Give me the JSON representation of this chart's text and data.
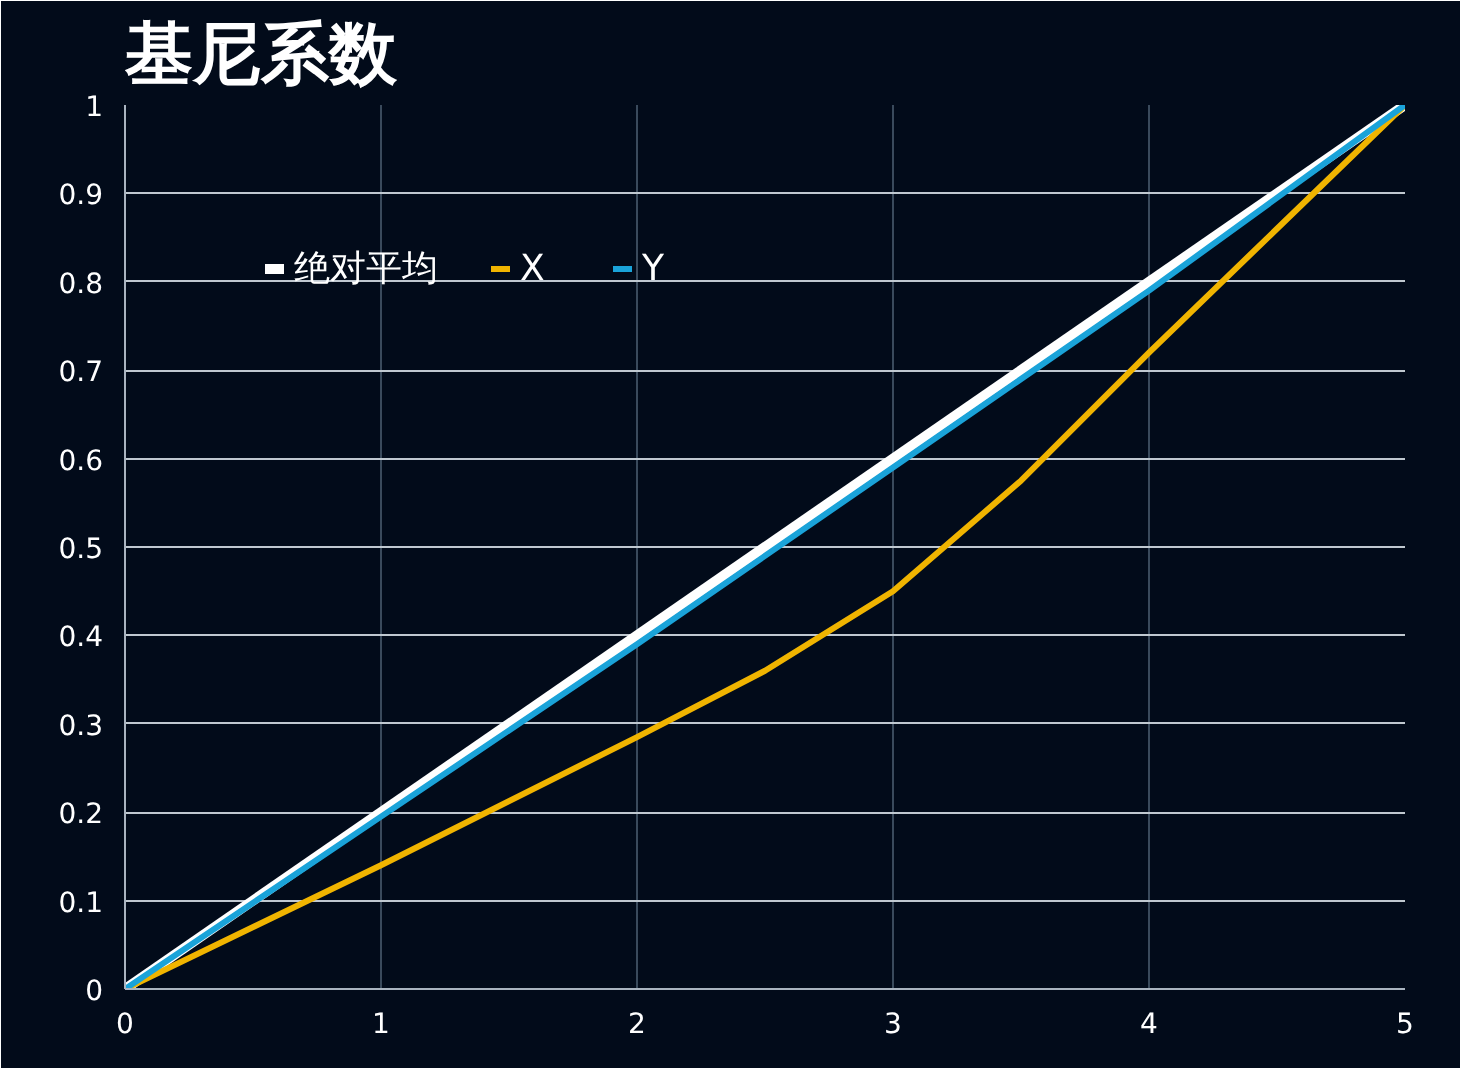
{
  "chart_data": {
    "type": "line",
    "title": "基尼系数",
    "xlim": [
      0,
      5
    ],
    "ylim": [
      0,
      1
    ],
    "xticks": [
      0,
      1,
      2,
      3,
      4,
      5
    ],
    "yticks": [
      0,
      0.1,
      0.2,
      0.3,
      0.4,
      0.5,
      0.6,
      0.7,
      0.8,
      0.9,
      1
    ],
    "grid": true,
    "legend": "top left",
    "line_style": "solid",
    "series": [
      {
        "name": "绝对平均",
        "color": "#ffffff",
        "x": [
          0,
          5
        ],
        "values": [
          0,
          1
        ]
      },
      {
        "name": "X",
        "color": "#f0b400",
        "x": [
          0,
          1,
          2,
          2.5,
          3,
          3.5,
          4,
          5
        ],
        "values": [
          0,
          0.14,
          0.285,
          0.36,
          0.45,
          0.575,
          0.72,
          1
        ]
      },
      {
        "name": "Y",
        "color": "#1aa3d9",
        "x": [
          0,
          1,
          2,
          3,
          4,
          5
        ],
        "values": [
          0,
          0.195,
          0.39,
          0.59,
          0.79,
          1
        ]
      }
    ]
  }
}
